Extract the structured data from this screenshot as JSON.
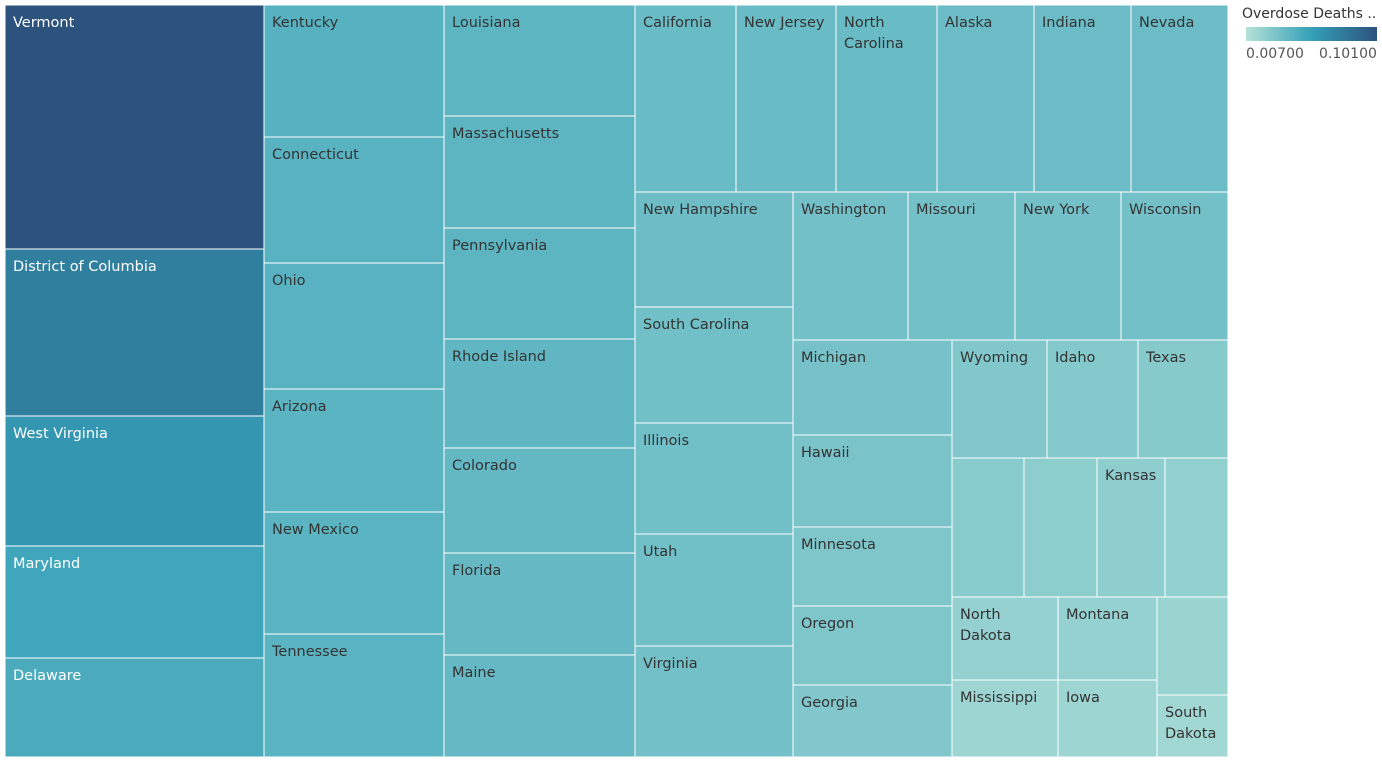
{
  "chart_data": {
    "type": "treemap",
    "color_measure": "Overdose Deaths ..",
    "legend": {
      "title": "Overdose Deaths ..",
      "min_label": "0.00700",
      "max_label": "0.10100",
      "min": 0.007,
      "max": 0.101,
      "colors": [
        "#b5e2d8",
        "#35a0b8",
        "#2c527e"
      ],
      "placement": "top-right"
    },
    "nodes": [
      {
        "label": "Vermont",
        "value": 0.101
      },
      {
        "label": "District of Columbia",
        "value": 0.074
      },
      {
        "label": "West Virginia",
        "value": 0.06
      },
      {
        "label": "Maryland",
        "value": 0.05
      },
      {
        "label": "Delaware",
        "value": 0.046
      },
      {
        "label": "Kentucky",
        "value": 0.042
      },
      {
        "label": "Connecticut",
        "value": 0.041
      },
      {
        "label": "Ohio",
        "value": 0.041
      },
      {
        "label": "Arizona",
        "value": 0.04
      },
      {
        "label": "New Mexico",
        "value": 0.04
      },
      {
        "label": "Tennessee",
        "value": 0.04
      },
      {
        "label": "Louisiana",
        "value": 0.039
      },
      {
        "label": "Massachusetts",
        "value": 0.039
      },
      {
        "label": "Pennsylvania",
        "value": 0.039
      },
      {
        "label": "Rhode Island",
        "value": 0.038
      },
      {
        "label": "Colorado",
        "value": 0.037
      },
      {
        "label": "Florida",
        "value": 0.036
      },
      {
        "label": "Maine",
        "value": 0.036
      },
      {
        "label": "California",
        "value": 0.035
      },
      {
        "label": "New Jersey",
        "value": 0.035
      },
      {
        "label": "North Carolina",
        "value": 0.035
      },
      {
        "label": "Alaska",
        "value": 0.034
      },
      {
        "label": "Indiana",
        "value": 0.034
      },
      {
        "label": "Nevada",
        "value": 0.034
      },
      {
        "label": "New Hampshire",
        "value": 0.033
      },
      {
        "label": "South Carolina",
        "value": 0.032
      },
      {
        "label": "Illinois",
        "value": 0.032
      },
      {
        "label": "Utah",
        "value": 0.032
      },
      {
        "label": "Virginia",
        "value": 0.031
      },
      {
        "label": "Washington",
        "value": 0.031
      },
      {
        "label": "Missouri",
        "value": 0.031
      },
      {
        "label": "New York",
        "value": 0.031
      },
      {
        "label": "Wisconsin",
        "value": 0.031
      },
      {
        "label": "Michigan",
        "value": 0.03
      },
      {
        "label": "Hawaii",
        "value": 0.029
      },
      {
        "label": "Minnesota",
        "value": 0.027
      },
      {
        "label": "Oregon",
        "value": 0.027
      },
      {
        "label": "Georgia",
        "value": 0.026
      },
      {
        "label": "Wyoming",
        "value": 0.026
      },
      {
        "label": "Idaho",
        "value": 0.025
      },
      {
        "label": "Texas",
        "value": 0.024
      },
      {
        "label": "",
        "value": 0.023
      },
      {
        "label": "",
        "value": 0.022
      },
      {
        "label": "Kansas",
        "value": 0.021
      },
      {
        "label": "",
        "value": 0.02
      },
      {
        "label": "North Dakota",
        "value": 0.019
      },
      {
        "label": "Montana",
        "value": 0.019
      },
      {
        "label": "",
        "value": 0.017
      },
      {
        "label": "Mississippi",
        "value": 0.016
      },
      {
        "label": "Iowa",
        "value": 0.016
      },
      {
        "label": "South Dakota",
        "value": 0.014
      }
    ]
  }
}
